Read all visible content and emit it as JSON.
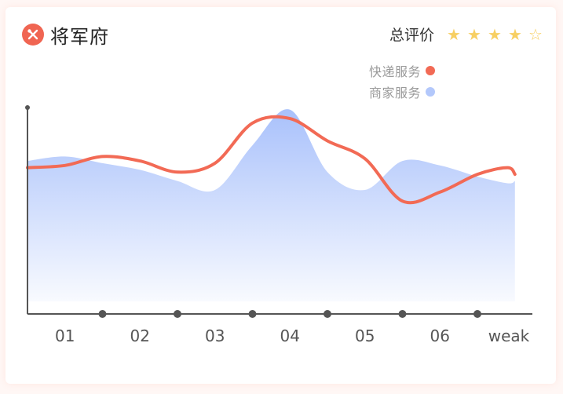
{
  "brand": {
    "name": "将军府",
    "icon": "utensils-icon",
    "color": "#f06552"
  },
  "rating": {
    "label": "总评价",
    "stars_filled": 4,
    "stars_total": 5,
    "star_color": "#f7cf62"
  },
  "legend": [
    {
      "label": "快递服务",
      "color": "#f26a55"
    },
    {
      "label": "商家服务",
      "color": "#b3c8fb"
    }
  ],
  "chart_data": {
    "type": "line",
    "categories": [
      "01",
      "02",
      "03",
      "04",
      "05",
      "06",
      "weak"
    ],
    "series": [
      {
        "name": "快递服务",
        "style": "line",
        "color": "#f26a55",
        "x": [
          0,
          0.5,
          1,
          1.5,
          2,
          2.5,
          3,
          3.5,
          4,
          4.5,
          5,
          5.5,
          6,
          6.4,
          6.5
        ],
        "values": [
          60,
          61,
          65,
          63,
          58,
          62,
          80,
          82,
          72,
          64,
          45,
          49,
          57,
          60,
          57
        ]
      },
      {
        "name": "商家服务",
        "style": "area",
        "color": "#b3c8fb",
        "x": [
          0,
          0.5,
          1,
          1.5,
          2,
          2.5,
          3,
          3.5,
          4,
          4.5,
          5,
          5.5,
          6,
          6.4,
          6.5
        ],
        "values": [
          63,
          65,
          62,
          59,
          54,
          50,
          70,
          86,
          58,
          50,
          63,
          61,
          56,
          53,
          54
        ]
      }
    ],
    "ylim": [
      0,
      100
    ],
    "xlabel": "",
    "ylabel": "",
    "grid": false,
    "legend_position": "top-right"
  }
}
